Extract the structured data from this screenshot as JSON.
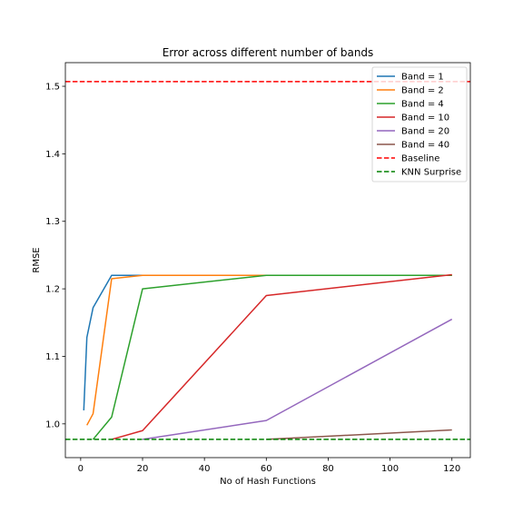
{
  "chart_data": {
    "type": "line",
    "title": "Error across different number of bands",
    "xlabel": "No of Hash Functions",
    "ylabel": "RMSE",
    "xlim": [
      -4.95,
      125.95
    ],
    "ylim": [
      0.95,
      1.535
    ],
    "xticks": [
      0,
      20,
      40,
      60,
      80,
      100,
      120
    ],
    "yticks": [
      1.0,
      1.1,
      1.2,
      1.3,
      1.4,
      1.5
    ],
    "grid": false,
    "legend_position": "top-right",
    "series": [
      {
        "name": "Band = 1",
        "color": "#1f77b4",
        "style": "solid",
        "x": [
          1,
          2,
          4,
          10,
          20,
          60,
          120
        ],
        "y": [
          1.02,
          1.128,
          1.172,
          1.22,
          1.22,
          1.22,
          1.22
        ]
      },
      {
        "name": "Band = 2",
        "color": "#ff7f0e",
        "style": "solid",
        "x": [
          2,
          4,
          10,
          20,
          60,
          120
        ],
        "y": [
          0.998,
          1.015,
          1.215,
          1.22,
          1.22,
          1.22
        ]
      },
      {
        "name": "Band = 4",
        "color": "#2ca02c",
        "style": "solid",
        "x": [
          4,
          10,
          20,
          60,
          120
        ],
        "y": [
          0.977,
          1.01,
          1.2,
          1.22,
          1.22
        ]
      },
      {
        "name": "Band = 10",
        "color": "#d62728",
        "style": "solid",
        "x": [
          10,
          20,
          60,
          120
        ],
        "y": [
          0.977,
          0.99,
          1.19,
          1.221
        ]
      },
      {
        "name": "Band = 20",
        "color": "#9467bd",
        "style": "solid",
        "x": [
          20,
          60,
          120
        ],
        "y": [
          0.977,
          1.005,
          1.155
        ]
      },
      {
        "name": "Band = 40",
        "color": "#8c564b",
        "style": "solid",
        "x": [
          60,
          120
        ],
        "y": [
          0.977,
          0.991
        ]
      },
      {
        "name": "Baseline",
        "color": "#ff0000",
        "style": "dashed",
        "hline": 1.507
      },
      {
        "name": "KNN Surprise",
        "color": "#008000",
        "style": "dashed",
        "hline": 0.977
      }
    ]
  }
}
